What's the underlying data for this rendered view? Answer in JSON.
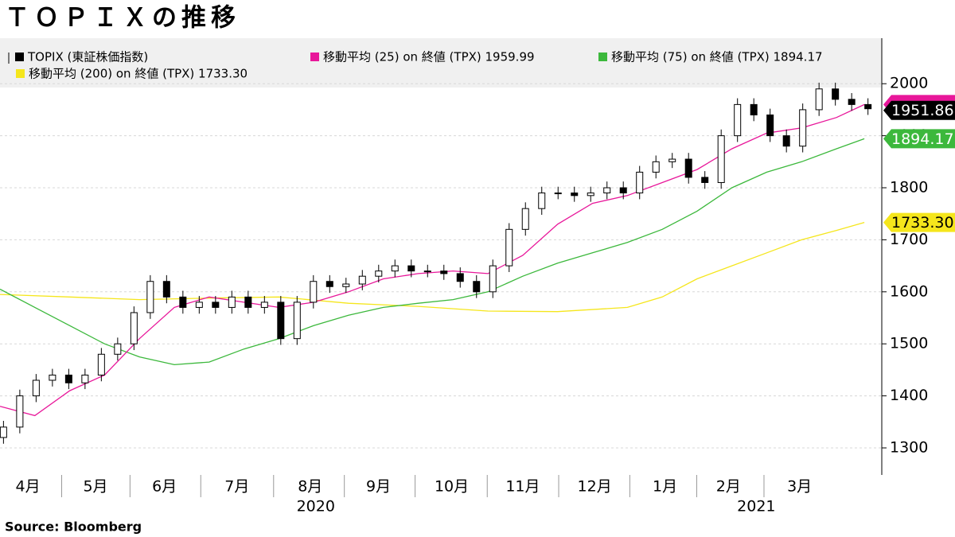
{
  "chart_data": {
    "type": "candlestick",
    "title": "ＴＯＰＩＸの推移",
    "source": "Source:  Bloomberg",
    "candle_name": "TOPIX (東証株価指数)",
    "candle_color": "#000000",
    "x": [
      0.05,
      0.284,
      0.518,
      0.752,
      0.986,
      1.22,
      1.454,
      1.688,
      1.922,
      2.156,
      2.39,
      2.624,
      2.858,
      3.092,
      3.326,
      3.56,
      3.794,
      4.028,
      4.262,
      4.496,
      4.73,
      4.964,
      5.198,
      5.432,
      5.666,
      5.9,
      6.134,
      6.368,
      6.602,
      6.836,
      7.07,
      7.304,
      7.538,
      7.772,
      8.006,
      8.24,
      8.474,
      8.708,
      8.942,
      9.176,
      9.41,
      9.644,
      9.878,
      10.112,
      10.346,
      10.58,
      10.814,
      11.048,
      11.282,
      11.516,
      11.75,
      11.984,
      12.218,
      12.452
    ],
    "open": [
      1320,
      1340,
      1400,
      1430,
      1440,
      1425,
      1440,
      1480,
      1500,
      1560,
      1620,
      1590,
      1570,
      1580,
      1570,
      1590,
      1570,
      1580,
      1510,
      1580,
      1620,
      1610,
      1615,
      1630,
      1640,
      1650,
      1640,
      1640,
      1635,
      1620,
      1600,
      1650,
      1720,
      1760,
      1790,
      1790,
      1785,
      1790,
      1800,
      1790,
      1830,
      1850,
      1855,
      1820,
      1810,
      1900,
      1960,
      1940,
      1900,
      1880,
      1950,
      1990,
      1970,
      1960
    ],
    "high": [
      1352,
      1412,
      1442,
      1452,
      1452,
      1452,
      1492,
      1512,
      1572,
      1632,
      1632,
      1602,
      1592,
      1592,
      1602,
      1602,
      1592,
      1592,
      1592,
      1632,
      1632,
      1627,
      1642,
      1652,
      1662,
      1662,
      1652,
      1652,
      1647,
      1632,
      1662,
      1732,
      1772,
      1802,
      1802,
      1802,
      1802,
      1812,
      1812,
      1842,
      1862,
      1867,
      1867,
      1832,
      1912,
      1972,
      1972,
      1952,
      1912,
      1962,
      2002,
      2002,
      1982,
      1972
    ],
    "low": [
      1308,
      1328,
      1388,
      1418,
      1413,
      1413,
      1428,
      1468,
      1488,
      1548,
      1578,
      1558,
      1558,
      1558,
      1558,
      1558,
      1558,
      1498,
      1498,
      1568,
      1598,
      1598,
      1603,
      1618,
      1628,
      1628,
      1628,
      1623,
      1608,
      1588,
      1588,
      1638,
      1708,
      1748,
      1778,
      1773,
      1773,
      1778,
      1778,
      1778,
      1818,
      1838,
      1808,
      1798,
      1798,
      1888,
      1928,
      1888,
      1868,
      1868,
      1938,
      1958,
      1948,
      1940
    ],
    "close": [
      1340,
      1400,
      1430,
      1440,
      1425,
      1440,
      1480,
      1500,
      1560,
      1620,
      1590,
      1570,
      1580,
      1570,
      1590,
      1570,
      1580,
      1510,
      1580,
      1620,
      1610,
      1615,
      1630,
      1640,
      1650,
      1640,
      1640,
      1635,
      1620,
      1600,
      1650,
      1720,
      1760,
      1790,
      1790,
      1785,
      1790,
      1800,
      1790,
      1830,
      1850,
      1855,
      1820,
      1810,
      1900,
      1960,
      1940,
      1900,
      1880,
      1950,
      1990,
      1970,
      1960,
      1951.86
    ],
    "series": [
      {
        "name": "移動平均 (25)  on 終値 (TPX) 1959.99",
        "color": "#e8179a",
        "x": [
          0,
          0.5,
          1,
          1.5,
          2,
          2.5,
          3,
          3.5,
          4,
          4.5,
          5,
          5.5,
          6,
          6.5,
          7,
          7.5,
          8,
          8.5,
          9,
          9.5,
          10,
          10.5,
          11,
          11.5,
          12,
          12.4
        ],
        "values": [
          1380,
          1362,
          1410,
          1440,
          1510,
          1570,
          1590,
          1580,
          1570,
          1580,
          1600,
          1625,
          1635,
          1640,
          1635,
          1670,
          1730,
          1770,
          1785,
          1810,
          1835,
          1875,
          1905,
          1915,
          1935,
          1959.99
        ]
      },
      {
        "name": "移動平均 (75)  on 終値 (TPX) 1894.17",
        "color": "#3cb83c",
        "x": [
          0,
          0.5,
          1,
          1.5,
          2,
          2.5,
          3,
          3.5,
          4,
          4.5,
          5,
          5.5,
          6,
          6.5,
          7,
          7.5,
          8,
          8.5,
          9,
          9.5,
          10,
          10.5,
          11,
          11.5,
          12,
          12.4
        ],
        "values": [
          1605,
          1570,
          1535,
          1500,
          1475,
          1460,
          1465,
          1490,
          1510,
          1535,
          1555,
          1570,
          1578,
          1585,
          1600,
          1630,
          1655,
          1675,
          1695,
          1720,
          1755,
          1800,
          1830,
          1850,
          1875,
          1894.17
        ]
      },
      {
        "name": "移動平均 (200)  on 終値 (TPX) 1733.30",
        "color": "#f5e61c",
        "x": [
          0,
          1,
          2,
          3,
          4,
          5,
          6,
          7,
          8,
          9,
          9.5,
          10,
          10.5,
          11,
          11.5,
          12,
          12.4
        ],
        "values": [
          1595,
          1590,
          1585,
          1588,
          1590,
          1578,
          1572,
          1563,
          1562,
          1570,
          1590,
          1625,
          1650,
          1675,
          1700,
          1718,
          1733.3
        ]
      }
    ],
    "tags": [
      {
        "value": 1951.86,
        "label": "1951.86",
        "color": "#000000",
        "text_color": "#ffffff"
      },
      {
        "value": 1894.17,
        "label": "1894.17",
        "color": "#3cb83c",
        "text_color": "#ffffff"
      },
      {
        "value": 1733.3,
        "label": "1733.30",
        "color": "#f5e61c",
        "text_color": "#000000"
      }
    ],
    "xlim": [
      0,
      12.65
    ],
    "xticks": [
      {
        "value": 0.4,
        "label": "4月"
      },
      {
        "value": 1.37,
        "label": "5月"
      },
      {
        "value": 2.36,
        "label": "6月"
      },
      {
        "value": 3.4,
        "label": "7月"
      },
      {
        "value": 4.45,
        "label": "8月"
      },
      {
        "value": 5.43,
        "label": "9月"
      },
      {
        "value": 6.48,
        "label": "10月"
      },
      {
        "value": 7.5,
        "label": "11月"
      },
      {
        "value": 8.53,
        "label": "12月"
      },
      {
        "value": 9.54,
        "label": "1月"
      },
      {
        "value": 10.45,
        "label": "2月"
      },
      {
        "value": 11.47,
        "label": "3月"
      }
    ],
    "year_labels": [
      {
        "value": 4.53,
        "label": "2020"
      },
      {
        "value": 10.85,
        "label": "2021"
      }
    ],
    "ylim": [
      1248,
      2087.5
    ],
    "yticks": [
      1300,
      1400,
      1500,
      1600,
      1700,
      1800,
      1900,
      2000
    ],
    "grid": true
  }
}
